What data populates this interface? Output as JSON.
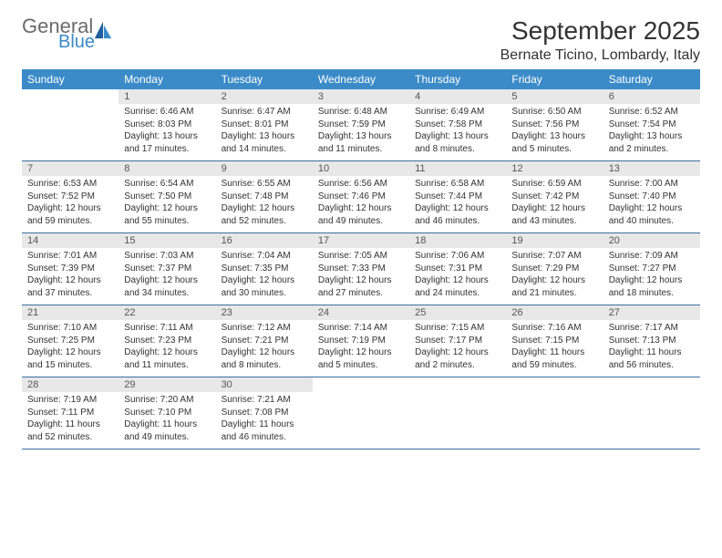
{
  "brand": {
    "general": "General",
    "blue": "Blue"
  },
  "title": "September 2025",
  "location": "Bernate Ticino, Lombardy, Italy",
  "colors": {
    "header_bg": "#3b8bc8",
    "header_text": "#ffffff",
    "daynum_bg": "#e8e8e8",
    "row_border": "#3b6fa0",
    "logo_gray": "#6b6b6b",
    "logo_blue": "#3b8bc8"
  },
  "days_of_week": [
    "Sunday",
    "Monday",
    "Tuesday",
    "Wednesday",
    "Thursday",
    "Friday",
    "Saturday"
  ],
  "weeks": [
    [
      {
        "n": "",
        "sr": "",
        "ss": "",
        "dl": ""
      },
      {
        "n": "1",
        "sr": "Sunrise: 6:46 AM",
        "ss": "Sunset: 8:03 PM",
        "dl": "Daylight: 13 hours and 17 minutes."
      },
      {
        "n": "2",
        "sr": "Sunrise: 6:47 AM",
        "ss": "Sunset: 8:01 PM",
        "dl": "Daylight: 13 hours and 14 minutes."
      },
      {
        "n": "3",
        "sr": "Sunrise: 6:48 AM",
        "ss": "Sunset: 7:59 PM",
        "dl": "Daylight: 13 hours and 11 minutes."
      },
      {
        "n": "4",
        "sr": "Sunrise: 6:49 AM",
        "ss": "Sunset: 7:58 PM",
        "dl": "Daylight: 13 hours and 8 minutes."
      },
      {
        "n": "5",
        "sr": "Sunrise: 6:50 AM",
        "ss": "Sunset: 7:56 PM",
        "dl": "Daylight: 13 hours and 5 minutes."
      },
      {
        "n": "6",
        "sr": "Sunrise: 6:52 AM",
        "ss": "Sunset: 7:54 PM",
        "dl": "Daylight: 13 hours and 2 minutes."
      }
    ],
    [
      {
        "n": "7",
        "sr": "Sunrise: 6:53 AM",
        "ss": "Sunset: 7:52 PM",
        "dl": "Daylight: 12 hours and 59 minutes."
      },
      {
        "n": "8",
        "sr": "Sunrise: 6:54 AM",
        "ss": "Sunset: 7:50 PM",
        "dl": "Daylight: 12 hours and 55 minutes."
      },
      {
        "n": "9",
        "sr": "Sunrise: 6:55 AM",
        "ss": "Sunset: 7:48 PM",
        "dl": "Daylight: 12 hours and 52 minutes."
      },
      {
        "n": "10",
        "sr": "Sunrise: 6:56 AM",
        "ss": "Sunset: 7:46 PM",
        "dl": "Daylight: 12 hours and 49 minutes."
      },
      {
        "n": "11",
        "sr": "Sunrise: 6:58 AM",
        "ss": "Sunset: 7:44 PM",
        "dl": "Daylight: 12 hours and 46 minutes."
      },
      {
        "n": "12",
        "sr": "Sunrise: 6:59 AM",
        "ss": "Sunset: 7:42 PM",
        "dl": "Daylight: 12 hours and 43 minutes."
      },
      {
        "n": "13",
        "sr": "Sunrise: 7:00 AM",
        "ss": "Sunset: 7:40 PM",
        "dl": "Daylight: 12 hours and 40 minutes."
      }
    ],
    [
      {
        "n": "14",
        "sr": "Sunrise: 7:01 AM",
        "ss": "Sunset: 7:39 PM",
        "dl": "Daylight: 12 hours and 37 minutes."
      },
      {
        "n": "15",
        "sr": "Sunrise: 7:03 AM",
        "ss": "Sunset: 7:37 PM",
        "dl": "Daylight: 12 hours and 34 minutes."
      },
      {
        "n": "16",
        "sr": "Sunrise: 7:04 AM",
        "ss": "Sunset: 7:35 PM",
        "dl": "Daylight: 12 hours and 30 minutes."
      },
      {
        "n": "17",
        "sr": "Sunrise: 7:05 AM",
        "ss": "Sunset: 7:33 PM",
        "dl": "Daylight: 12 hours and 27 minutes."
      },
      {
        "n": "18",
        "sr": "Sunrise: 7:06 AM",
        "ss": "Sunset: 7:31 PM",
        "dl": "Daylight: 12 hours and 24 minutes."
      },
      {
        "n": "19",
        "sr": "Sunrise: 7:07 AM",
        "ss": "Sunset: 7:29 PM",
        "dl": "Daylight: 12 hours and 21 minutes."
      },
      {
        "n": "20",
        "sr": "Sunrise: 7:09 AM",
        "ss": "Sunset: 7:27 PM",
        "dl": "Daylight: 12 hours and 18 minutes."
      }
    ],
    [
      {
        "n": "21",
        "sr": "Sunrise: 7:10 AM",
        "ss": "Sunset: 7:25 PM",
        "dl": "Daylight: 12 hours and 15 minutes."
      },
      {
        "n": "22",
        "sr": "Sunrise: 7:11 AM",
        "ss": "Sunset: 7:23 PM",
        "dl": "Daylight: 12 hours and 11 minutes."
      },
      {
        "n": "23",
        "sr": "Sunrise: 7:12 AM",
        "ss": "Sunset: 7:21 PM",
        "dl": "Daylight: 12 hours and 8 minutes."
      },
      {
        "n": "24",
        "sr": "Sunrise: 7:14 AM",
        "ss": "Sunset: 7:19 PM",
        "dl": "Daylight: 12 hours and 5 minutes."
      },
      {
        "n": "25",
        "sr": "Sunrise: 7:15 AM",
        "ss": "Sunset: 7:17 PM",
        "dl": "Daylight: 12 hours and 2 minutes."
      },
      {
        "n": "26",
        "sr": "Sunrise: 7:16 AM",
        "ss": "Sunset: 7:15 PM",
        "dl": "Daylight: 11 hours and 59 minutes."
      },
      {
        "n": "27",
        "sr": "Sunrise: 7:17 AM",
        "ss": "Sunset: 7:13 PM",
        "dl": "Daylight: 11 hours and 56 minutes."
      }
    ],
    [
      {
        "n": "28",
        "sr": "Sunrise: 7:19 AM",
        "ss": "Sunset: 7:11 PM",
        "dl": "Daylight: 11 hours and 52 minutes."
      },
      {
        "n": "29",
        "sr": "Sunrise: 7:20 AM",
        "ss": "Sunset: 7:10 PM",
        "dl": "Daylight: 11 hours and 49 minutes."
      },
      {
        "n": "30",
        "sr": "Sunrise: 7:21 AM",
        "ss": "Sunset: 7:08 PM",
        "dl": "Daylight: 11 hours and 46 minutes."
      },
      {
        "n": "",
        "sr": "",
        "ss": "",
        "dl": ""
      },
      {
        "n": "",
        "sr": "",
        "ss": "",
        "dl": ""
      },
      {
        "n": "",
        "sr": "",
        "ss": "",
        "dl": ""
      },
      {
        "n": "",
        "sr": "",
        "ss": "",
        "dl": ""
      }
    ]
  ]
}
